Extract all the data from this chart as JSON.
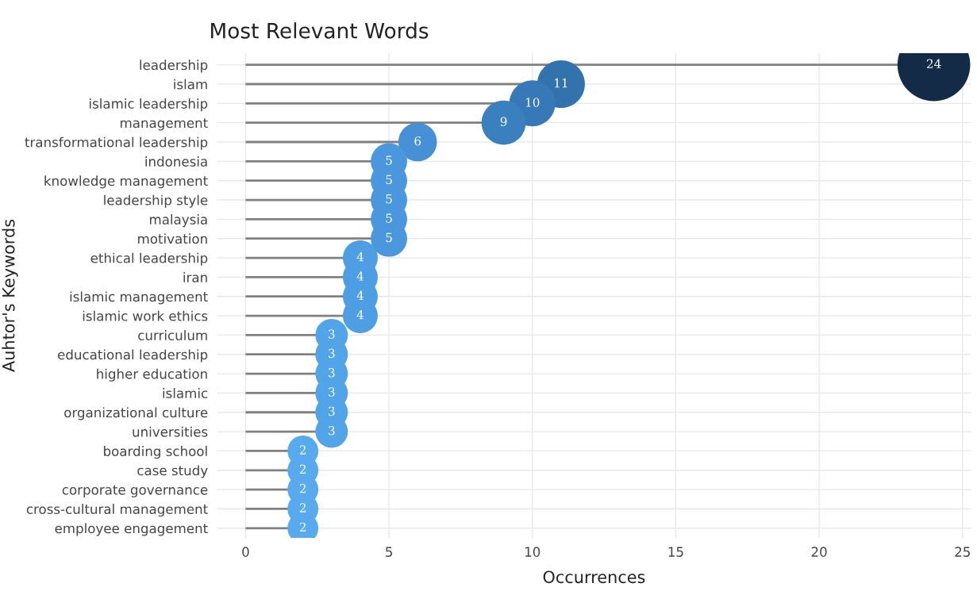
{
  "chart_data": {
    "type": "lollipop",
    "title": "Most Relevant Words",
    "xlabel": "Occurrences",
    "ylabel": "Auhtor's Keywords",
    "orientation": "horizontal",
    "categories": [
      "leadership",
      "islam",
      "islamic leadership",
      "management",
      "transformational leadership",
      "indonesia",
      "knowledge management",
      "leadership style",
      "malaysia",
      "motivation",
      "ethical leadership",
      "iran",
      "islamic management",
      "islamic work ethics",
      "curriculum",
      "educational leadership",
      "higher education",
      "islamic",
      "organizational culture",
      "universities",
      "boarding school",
      "case study",
      "corporate governance",
      "cross-cultural management",
      "employee engagement"
    ],
    "values": [
      24,
      11,
      10,
      9,
      6,
      5,
      5,
      5,
      5,
      5,
      4,
      4,
      4,
      4,
      3,
      3,
      3,
      3,
      3,
      3,
      2,
      2,
      2,
      2,
      2
    ],
    "colors": [
      "#132b47",
      "#3373ad",
      "#3679b6",
      "#3a80bf",
      "#4790d6",
      "#4a97dd",
      "#4a97dd",
      "#4a97dd",
      "#4a97dd",
      "#4a97dd",
      "#4e9ee3",
      "#4e9ee3",
      "#4e9ee3",
      "#4e9ee3",
      "#52a4e8",
      "#52a4e8",
      "#52a4e8",
      "#52a4e8",
      "#52a4e8",
      "#52a4e8",
      "#56aaed",
      "#56aaed",
      "#56aaed",
      "#56aaed",
      "#56aaed"
    ],
    "sizes": [
      1,
      0.43,
      0.4,
      0.37,
      0.28,
      0.25,
      0.25,
      0.25,
      0.25,
      0.25,
      0.23,
      0.23,
      0.23,
      0.23,
      0.2,
      0.2,
      0.2,
      0.2,
      0.2,
      0.2,
      0.18,
      0.18,
      0.18,
      0.18,
      0.18
    ],
    "data_labels": true,
    "xlim": [
      -1,
      25.3
    ],
    "xticks": [
      0,
      5,
      10,
      15,
      20,
      25
    ],
    "grid": true
  }
}
